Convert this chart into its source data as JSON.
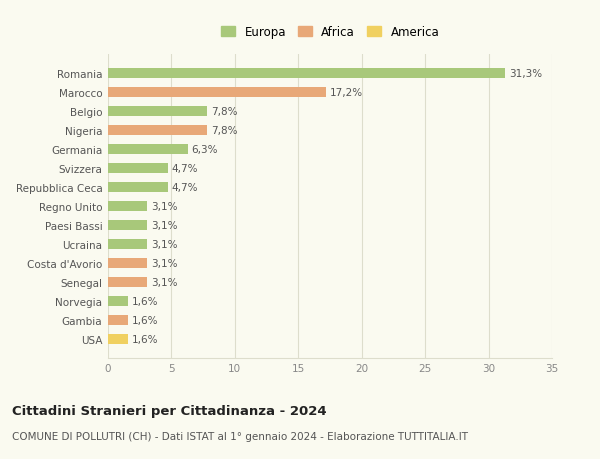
{
  "categories": [
    "Romania",
    "Marocco",
    "Belgio",
    "Nigeria",
    "Germania",
    "Svizzera",
    "Repubblica Ceca",
    "Regno Unito",
    "Paesi Bassi",
    "Ucraina",
    "Costa d'Avorio",
    "Senegal",
    "Norvegia",
    "Gambia",
    "USA"
  ],
  "values": [
    31.3,
    17.2,
    7.8,
    7.8,
    6.3,
    4.7,
    4.7,
    3.1,
    3.1,
    3.1,
    3.1,
    3.1,
    1.6,
    1.6,
    1.6
  ],
  "labels": [
    "31,3%",
    "17,2%",
    "7,8%",
    "7,8%",
    "6,3%",
    "4,7%",
    "4,7%",
    "3,1%",
    "3,1%",
    "3,1%",
    "3,1%",
    "3,1%",
    "1,6%",
    "1,6%",
    "1,6%"
  ],
  "continents": [
    "Europa",
    "Africa",
    "Europa",
    "Africa",
    "Europa",
    "Europa",
    "Europa",
    "Europa",
    "Europa",
    "Europa",
    "Africa",
    "Africa",
    "Europa",
    "Africa",
    "America"
  ],
  "colors": {
    "Europa": "#a8c87a",
    "Africa": "#e8a878",
    "America": "#f0d060"
  },
  "xlim": [
    0,
    35
  ],
  "xticks": [
    0,
    5,
    10,
    15,
    20,
    25,
    30,
    35
  ],
  "title": "Cittadini Stranieri per Cittadinanza - 2024",
  "subtitle": "COMUNE DI POLLUTRI (CH) - Dati ISTAT al 1° gennaio 2024 - Elaborazione TUTTITALIA.IT",
  "background_color": "#fafaf0",
  "grid_color": "#ddddcc",
  "bar_height": 0.55,
  "label_fontsize": 7.5,
  "tick_fontsize": 7.5,
  "title_fontsize": 9.5,
  "subtitle_fontsize": 7.5
}
